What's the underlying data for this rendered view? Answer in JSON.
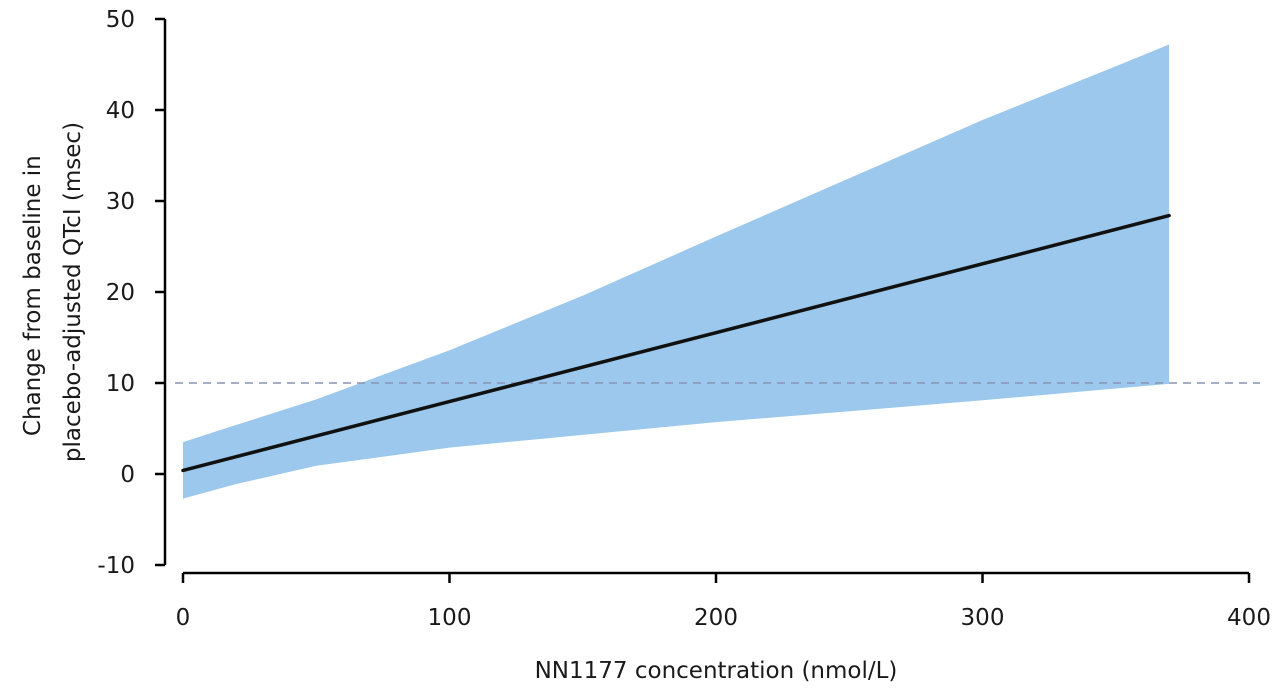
{
  "chart_data": {
    "type": "line",
    "xlabel": "NN1177 concentration (nmol/L)",
    "ylabel_lines": [
      "Change from baseline in",
      "placebo-adjusted QTcI (msec)"
    ],
    "xlim": [
      0,
      400
    ],
    "ylim": [
      -10,
      50
    ],
    "xticks": [
      0,
      100,
      200,
      300,
      400
    ],
    "yticks": [
      -10,
      0,
      10,
      20,
      30,
      40,
      50
    ],
    "grid": false,
    "series": [
      {
        "role": "estimate",
        "color": "#111111",
        "x": [
          0,
          370
        ],
        "y": [
          0.4,
          28.4
        ]
      }
    ],
    "band": {
      "role": "confidence-interval",
      "color": "#9bc8ec",
      "x": [
        0,
        20,
        50,
        100,
        150,
        200,
        250,
        300,
        350,
        370
      ],
      "upper": [
        3.5,
        5.4,
        8.2,
        13.6,
        19.6,
        26.1,
        32.5,
        38.9,
        44.8,
        47.2
      ],
      "lower": [
        -2.7,
        -1.1,
        0.9,
        2.9,
        4.3,
        5.7,
        6.9,
        8.1,
        9.4,
        9.9
      ]
    },
    "reference_line": {
      "y": 10,
      "style": "dashed",
      "color": "#8a93b5"
    }
  }
}
